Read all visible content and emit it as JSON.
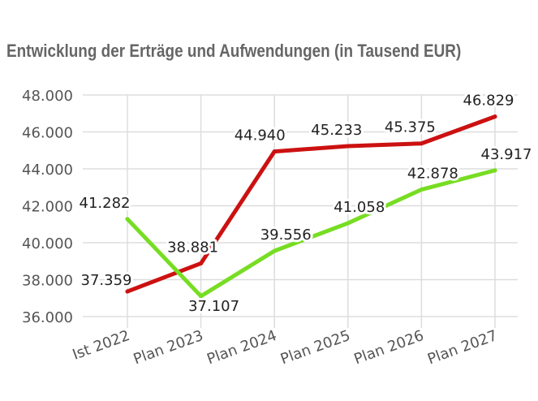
{
  "chart_data": {
    "type": "line",
    "title": "Entwicklung der Erträge und Aufwendungen  (in Tausend EUR)",
    "categories": [
      "Ist 2022",
      "Plan 2023",
      "Plan 2024",
      "Plan 2025",
      "Plan 2026",
      "Plan 2027"
    ],
    "ylim": [
      36000,
      48000
    ],
    "yticks": [
      36000,
      38000,
      40000,
      42000,
      44000,
      46000,
      48000
    ],
    "ytick_labels": [
      "36.000",
      "38.000",
      "40.000",
      "42.000",
      "44.000",
      "46.000",
      "48.000"
    ],
    "grid": true,
    "series": [
      {
        "color": "#cc1111",
        "values": [
          37359,
          38881,
          44940,
          45233,
          45375,
          46829
        ],
        "labels": [
          "37.359",
          "38.881",
          "44.940",
          "45.233",
          "45.375",
          "46.829"
        ]
      },
      {
        "color": "#77dd22",
        "values": [
          41282,
          37107,
          39556,
          41058,
          42878,
          43917
        ],
        "labels": [
          "41.282",
          "37.107",
          "39.556",
          "41.058",
          "42.878",
          "43.917"
        ]
      }
    ]
  }
}
